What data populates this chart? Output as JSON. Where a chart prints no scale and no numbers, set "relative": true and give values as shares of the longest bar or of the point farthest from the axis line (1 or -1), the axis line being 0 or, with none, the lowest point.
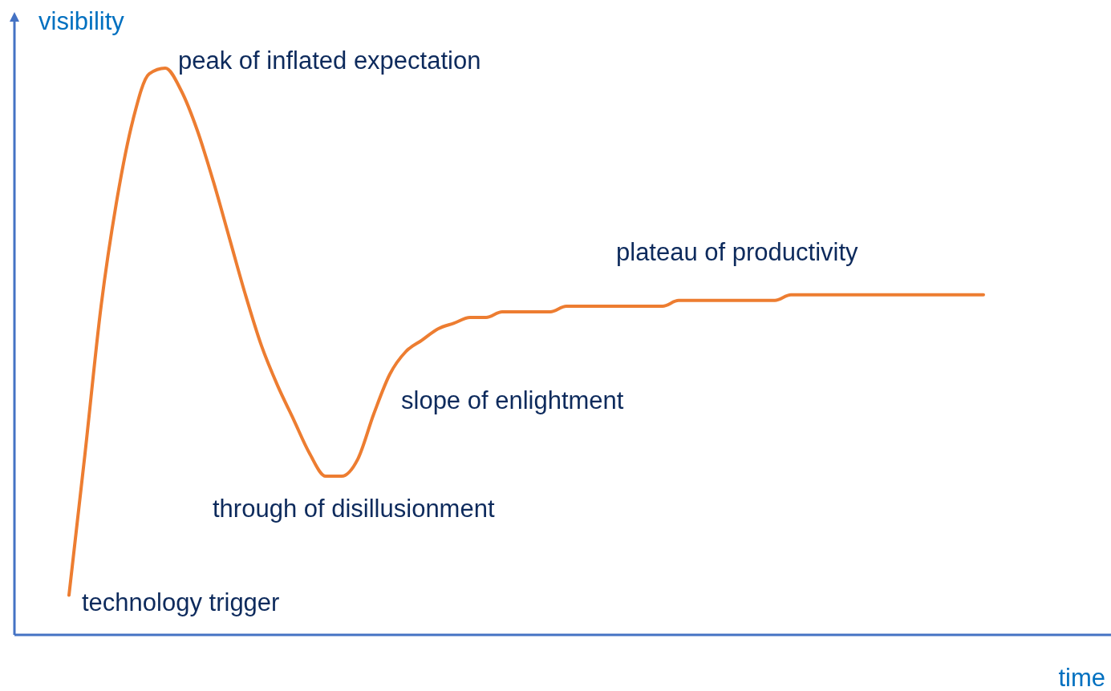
{
  "chart_data": {
    "type": "line",
    "relative": true,
    "xlabel": "time",
    "ylabel": "visibility",
    "categories": [
      null,
      null,
      null,
      null,
      null,
      null,
      null,
      null,
      null,
      null,
      null,
      null,
      null,
      null,
      null,
      null,
      null,
      null,
      null,
      null,
      null,
      null,
      null,
      null,
      null,
      null,
      null,
      null,
      null,
      null,
      null,
      null,
      null,
      null,
      null,
      null,
      null,
      null,
      null,
      null,
      null,
      null,
      null,
      null,
      null,
      null,
      null,
      null,
      null,
      null,
      null,
      null,
      null,
      null,
      null,
      null,
      null,
      null
    ],
    "series": [
      {
        "color": "#ed7d31",
        "values": [
          0.07,
          0.32,
          0.58,
          0.77,
          0.91,
          0.99,
          1,
          0.96,
          0.89,
          0.8,
          0.7,
          0.6,
          0.51,
          0.44,
          0.38,
          0.32,
          0.28,
          0.28,
          0.31,
          0.39,
          0.46,
          0.5,
          0.52,
          0.54,
          0.55,
          0.56,
          0.56,
          0.57,
          0.57,
          0.57,
          0.57,
          0.58,
          0.58,
          0.58,
          0.58,
          0.58,
          0.58,
          0.58,
          0.59,
          0.59,
          0.59,
          0.59,
          0.59,
          0.59,
          0.59,
          0.6,
          0.6,
          0.6,
          0.6,
          0.6,
          0.6,
          0.6,
          0.6,
          0.6,
          0.6,
          0.6,
          0.6,
          0.6
        ]
      }
    ],
    "annotations": [
      "peak of inflated expectation",
      "plateau of productivity",
      "slope of enlightment",
      "through of disillusionment",
      "technology trigger"
    ],
    "marker": "none"
  }
}
